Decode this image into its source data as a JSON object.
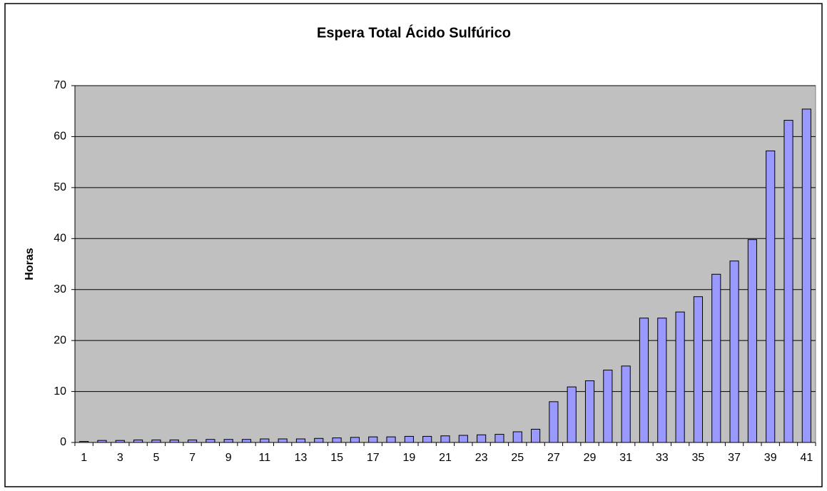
{
  "chart_data": {
    "type": "bar",
    "title": "Espera Total Ácido Sulfúrico",
    "y_label": "Horas",
    "categories": [
      1,
      null,
      3,
      null,
      5,
      null,
      7,
      null,
      9,
      null,
      11,
      null,
      13,
      null,
      15,
      null,
      17,
      null,
      19,
      null,
      21,
      null,
      23,
      null,
      25,
      null,
      27,
      null,
      29,
      null,
      31,
      null,
      33,
      null,
      35,
      null,
      37,
      null,
      39,
      null,
      41
    ],
    "values": [
      0.2,
      0.4,
      0.4,
      0.5,
      0.5,
      0.5,
      0.5,
      0.6,
      0.6,
      0.6,
      0.7,
      0.7,
      0.7,
      0.8,
      0.9,
      1.0,
      1.1,
      1.1,
      1.2,
      1.2,
      1.3,
      1.4,
      1.5,
      1.6,
      2.1,
      2.6,
      8.0,
      10.9,
      12.1,
      14.2,
      15.0,
      24.4,
      24.4,
      25.6,
      28.6,
      33.0,
      35.6,
      39.8,
      57.2,
      63.2,
      65.4
    ],
    "color": "#9999ff",
    "plot_background": "#c0c0c0",
    "ylim": [
      0,
      70
    ],
    "yticks": [
      0,
      10,
      20,
      30,
      40,
      50,
      60,
      70
    ],
    "grid": true
  }
}
